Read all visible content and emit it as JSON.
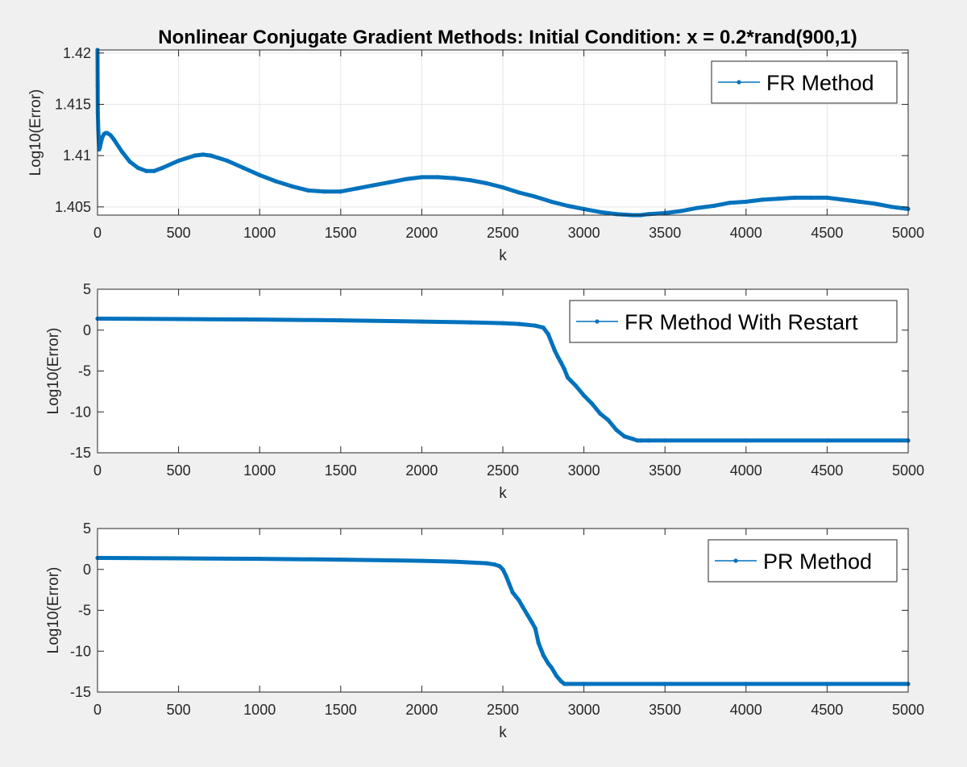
{
  "figure": {
    "title": "Nonlinear Conjugate Gradient Methods: Initial Condition: x = 0.2*rand(900,1)",
    "background": "#f0f0f0",
    "line_color": "#0072bd"
  },
  "chart_data": [
    {
      "type": "line",
      "title": "Nonlinear Conjugate Gradient Methods: Initial Condition: x = 0.2*rand(900,1)",
      "xlabel": "k",
      "ylabel": "Log10(Error)",
      "xlim": [
        0,
        5000
      ],
      "ylim": [
        1.4042,
        1.4203
      ],
      "xticks": [
        0,
        500,
        1000,
        1500,
        2000,
        2500,
        3000,
        3500,
        4000,
        4500,
        5000
      ],
      "yticks": [
        1.405,
        1.41,
        1.415,
        1.42
      ],
      "ytick_labels": [
        "1.405",
        "1.41",
        "1.415",
        "1.42"
      ],
      "grid": true,
      "legend": "top-right",
      "series": [
        {
          "name": "FR Method",
          "color": "#0072bd",
          "marker": "dot",
          "x": [
            0,
            1,
            2,
            5,
            10,
            15,
            20,
            30,
            40,
            50,
            60,
            80,
            100,
            150,
            200,
            250,
            300,
            350,
            400,
            500,
            600,
            650,
            700,
            800,
            900,
            1000,
            1100,
            1200,
            1300,
            1400,
            1500,
            1600,
            1700,
            1800,
            1900,
            2000,
            2100,
            2200,
            2300,
            2400,
            2500,
            2600,
            2700,
            2800,
            2900,
            3000,
            3100,
            3200,
            3300,
            3350,
            3400,
            3500,
            3600,
            3700,
            3800,
            3900,
            4000,
            4100,
            4200,
            4300,
            4400,
            4500,
            4600,
            4700,
            4800,
            4900,
            5000
          ],
          "y": [
            1.4203,
            1.4168,
            1.4142,
            1.4125,
            1.4106,
            1.4108,
            1.4112,
            1.4118,
            1.4121,
            1.4122,
            1.4122,
            1.412,
            1.4116,
            1.4104,
            1.4094,
            1.4088,
            1.4085,
            1.4085,
            1.4088,
            1.4095,
            1.41,
            1.4101,
            1.41,
            1.4095,
            1.4088,
            1.4081,
            1.4075,
            1.407,
            1.4066,
            1.4065,
            1.4065,
            1.4068,
            1.4071,
            1.4074,
            1.4077,
            1.4079,
            1.4079,
            1.4078,
            1.4076,
            1.4073,
            1.4069,
            1.4064,
            1.406,
            1.4055,
            1.4051,
            1.4048,
            1.4045,
            1.4043,
            1.4042,
            1.4042,
            1.4043,
            1.4044,
            1.4046,
            1.4049,
            1.4051,
            1.4054,
            1.4055,
            1.4057,
            1.4058,
            1.4059,
            1.4059,
            1.4059,
            1.4057,
            1.4055,
            1.4053,
            1.405,
            1.4048
          ]
        }
      ]
    },
    {
      "type": "line",
      "xlabel": "k",
      "ylabel": "Log10(Error)",
      "xlim": [
        0,
        5000
      ],
      "ylim": [
        -15,
        5
      ],
      "xticks": [
        0,
        500,
        1000,
        1500,
        2000,
        2500,
        3000,
        3500,
        4000,
        4500,
        5000
      ],
      "yticks": [
        -15,
        -10,
        -5,
        0,
        5
      ],
      "ytick_labels": [
        "-15",
        "-10",
        "-5",
        "0",
        "5"
      ],
      "grid": false,
      "legend": "top-right",
      "series": [
        {
          "name": "FR Method With Restart",
          "color": "#0072bd",
          "marker": "dot",
          "x": [
            0,
            500,
            1000,
            1500,
            2000,
            2300,
            2500,
            2600,
            2700,
            2750,
            2780,
            2800,
            2820,
            2840,
            2860,
            2880,
            2900,
            2920,
            2950,
            3000,
            3050,
            3100,
            3150,
            3200,
            3250,
            3300,
            3330,
            3350,
            3400,
            3500,
            4000,
            4500,
            5000
          ],
          "y": [
            1.4,
            1.35,
            1.3,
            1.2,
            1.05,
            0.95,
            0.85,
            0.75,
            0.55,
            0.3,
            -0.5,
            -1.5,
            -2.5,
            -3.3,
            -4.0,
            -4.8,
            -5.8,
            -6.2,
            -6.8,
            -8.0,
            -9.0,
            -10.2,
            -11.0,
            -12.2,
            -13.0,
            -13.3,
            -13.5,
            -13.5,
            -13.5,
            -13.5,
            -13.5,
            -13.5,
            -13.5
          ]
        }
      ]
    },
    {
      "type": "line",
      "xlabel": "k",
      "ylabel": "Log10(Error)",
      "xlim": [
        0,
        5000
      ],
      "ylim": [
        -15,
        5
      ],
      "xticks": [
        0,
        500,
        1000,
        1500,
        2000,
        2500,
        3000,
        3500,
        4000,
        4500,
        5000
      ],
      "yticks": [
        -15,
        -10,
        -5,
        0,
        5
      ],
      "ytick_labels": [
        "-15",
        "-10",
        "-5",
        "0",
        "5"
      ],
      "grid": false,
      "legend": "top-right",
      "series": [
        {
          "name": "PR Method",
          "color": "#0072bd",
          "marker": "dot",
          "x": [
            0,
            500,
            1000,
            1500,
            2000,
            2200,
            2400,
            2450,
            2480,
            2500,
            2520,
            2540,
            2560,
            2580,
            2600,
            2620,
            2650,
            2680,
            2700,
            2720,
            2750,
            2780,
            2800,
            2830,
            2860,
            2880,
            2900,
            3000,
            3500,
            4000,
            4500,
            5000
          ],
          "y": [
            1.4,
            1.35,
            1.3,
            1.2,
            1.05,
            0.95,
            0.75,
            0.6,
            0.4,
            0.0,
            -0.8,
            -1.8,
            -2.8,
            -3.3,
            -3.8,
            -4.5,
            -5.5,
            -6.5,
            -7.2,
            -9.0,
            -10.5,
            -11.5,
            -12.0,
            -13.0,
            -13.7,
            -14.0,
            -14.0,
            -14.0,
            -14.0,
            -14.0,
            -14.0,
            -14.0
          ]
        }
      ]
    }
  ]
}
